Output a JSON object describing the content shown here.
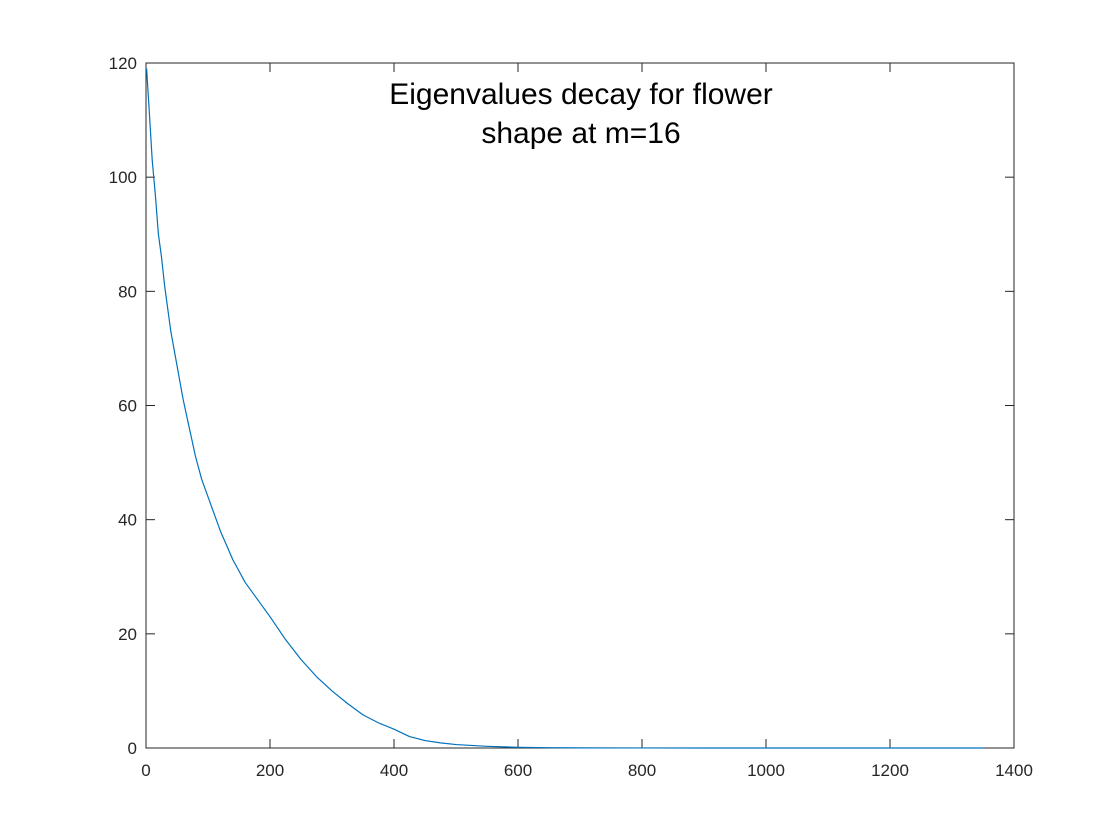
{
  "chart_data": {
    "type": "line",
    "title_lines": [
      "Eigenvalues decay for flower",
      "shape at m=16"
    ],
    "xlabel": "",
    "ylabel": "",
    "xlim": [
      0,
      1400
    ],
    "ylim": [
      0,
      120
    ],
    "xticks": [
      0,
      200,
      400,
      600,
      800,
      1000,
      1200,
      1400
    ],
    "yticks": [
      0,
      20,
      40,
      60,
      80,
      100,
      120
    ],
    "xtick_labels": [
      "0",
      "200",
      "400",
      "600",
      "800",
      "1000",
      "1200",
      "1400"
    ],
    "ytick_labels": [
      "0",
      "20",
      "40",
      "60",
      "80",
      "100",
      "120"
    ],
    "grid": false,
    "series": [
      {
        "color": "#0072BD",
        "x": [
          1,
          5,
          10,
          15,
          20,
          25,
          30,
          40,
          50,
          60,
          70,
          80,
          90,
          100,
          120,
          140,
          160,
          180,
          200,
          225,
          250,
          275,
          300,
          325,
          350,
          375,
          400,
          425,
          450,
          475,
          500,
          550,
          600,
          650,
          700,
          800,
          900,
          1000,
          1100,
          1200,
          1300,
          1350
        ],
        "y": [
          119,
          112,
          103,
          97,
          90,
          86,
          81,
          73,
          67,
          61,
          56,
          51,
          47,
          44,
          38,
          33,
          29,
          26,
          23,
          19,
          15.5,
          12.5,
          10,
          7.8,
          5.8,
          4.4,
          3.3,
          2.0,
          1.3,
          0.9,
          0.6,
          0.3,
          0.12,
          0.05,
          0.02,
          0.01,
          0.005,
          0.003,
          0.002,
          0.001,
          0.001,
          0.001
        ]
      }
    ]
  }
}
